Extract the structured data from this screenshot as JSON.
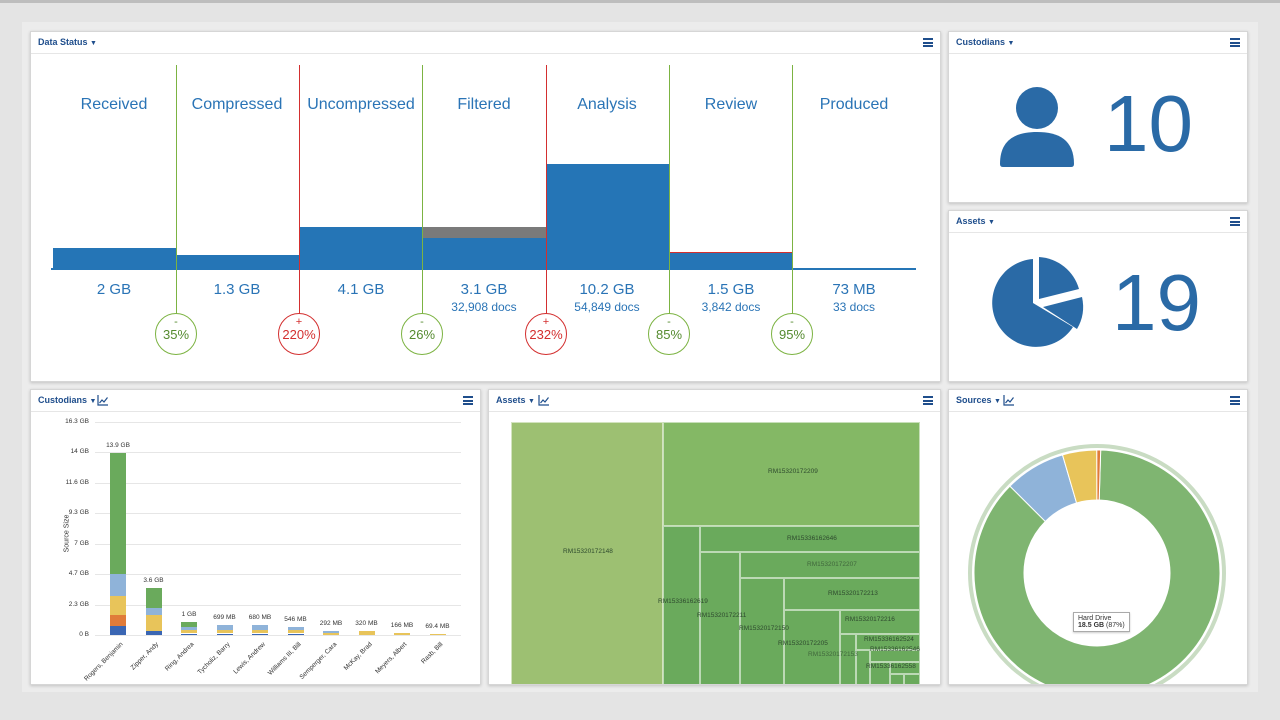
{
  "colors": {
    "accent": "#2575b6",
    "title": "#1f4e8c",
    "decrease": "#7cb342",
    "increase": "#d32f2f",
    "treemap_dark": "#6aaa5c",
    "treemap_light": "#9dc072"
  },
  "data_status": {
    "title": "Data Status",
    "stages": [
      {
        "name": "Received",
        "size": "2 GB",
        "docs": ""
      },
      {
        "name": "Compressed",
        "size": "1.3 GB",
        "docs": ""
      },
      {
        "name": "Uncompressed",
        "size": "4.1 GB",
        "docs": ""
      },
      {
        "name": "Filtered",
        "size": "3.1 GB",
        "docs": "32,908 docs"
      },
      {
        "name": "Analysis",
        "size": "10.2 GB",
        "docs": "54,849 docs"
      },
      {
        "name": "Review",
        "size": "1.5 GB",
        "docs": "3,842 docs"
      },
      {
        "name": "Produced",
        "size": "73 MB",
        "docs": "33 docs"
      }
    ],
    "changes": [
      {
        "sign": "-",
        "pct": "35%",
        "dir": "down"
      },
      {
        "sign": "+",
        "pct": "220%",
        "dir": "up"
      },
      {
        "sign": "-",
        "pct": "26%",
        "dir": "down"
      },
      {
        "sign": "+",
        "pct": "232%",
        "dir": "up"
      },
      {
        "sign": "-",
        "pct": "85%",
        "dir": "down"
      },
      {
        "sign": "-",
        "pct": "95%",
        "dir": "down"
      }
    ]
  },
  "custodians_count": {
    "title": "Custodians",
    "value": "10",
    "icon": "user-icon"
  },
  "assets_count": {
    "title": "Assets",
    "value": "19",
    "icon": "pie-chart-icon"
  },
  "custodians_chart": {
    "title": "Custodians",
    "chart_data": {
      "type": "bar",
      "ylabel": "Source Size",
      "yticks": [
        "16.3 GB",
        "14 GB",
        "11.6 GB",
        "9.3 GB",
        "7 GB",
        "4.7 GB",
        "2.3 GB",
        "0 B"
      ],
      "ylim": [
        0,
        16.3
      ],
      "categories": [
        "Rogers, Benjamin",
        "Zipper, Andy",
        "Ring, Andrea",
        "Tycholiz, Barry",
        "Lewis, Andrew",
        "Williams III, Bill",
        "Semperger, Cara",
        "McKay, Brad",
        "Meyers, Albert",
        "Rasb, Bill"
      ],
      "value_labels": [
        "13.9 GB",
        "3.6 GB",
        "1 GB",
        "699 MB",
        "680 MB",
        "546 MB",
        "292 MB",
        "320 MB",
        "166 MB",
        "69.4 MB"
      ],
      "values_gb": [
        13.9,
        3.6,
        1.0,
        0.699,
        0.68,
        0.546,
        0.292,
        0.32,
        0.166,
        0.0694
      ],
      "segment_colors": [
        "#3a66b3",
        "#e07b39",
        "#e8c45a",
        "#8fb3d9",
        "#6aaa5c"
      ],
      "segments_gb": [
        [
          0.7,
          0.8,
          1.5,
          1.7,
          9.2
        ],
        [
          0.3,
          0.0,
          1.2,
          0.6,
          1.5
        ],
        [
          0.1,
          0.0,
          0.3,
          0.2,
          0.4
        ],
        [
          0.05,
          0.0,
          0.3,
          0.349,
          0.0
        ],
        [
          0.05,
          0.0,
          0.3,
          0.33,
          0.0
        ],
        [
          0.05,
          0.0,
          0.25,
          0.246,
          0.0
        ],
        [
          0.0,
          0.0,
          0.15,
          0.142,
          0.0
        ],
        [
          0.0,
          0.0,
          0.32,
          0.0,
          0.0
        ],
        [
          0.0,
          0.0,
          0.166,
          0.0,
          0.0
        ],
        [
          0.0,
          0.0,
          0.0694,
          0.0,
          0.0
        ]
      ]
    }
  },
  "assets_treemap": {
    "title": "Assets",
    "labels": [
      "RM15320172148",
      "RM15320172209",
      "RM15336162646",
      "RM15320172207",
      "RM15320172213",
      "RM15336162619",
      "RM15320172211",
      "RM15320172216",
      "RM15320172150",
      "RM15336162524",
      "RM15320172205",
      "RM15336162546",
      "RM15320172153",
      "RM15336162558"
    ]
  },
  "sources_chart": {
    "title": "Sources",
    "tooltip": {
      "label": "Hard Drive",
      "value": "18.5 GB",
      "pct": "(87%)"
    },
    "chart_data": {
      "type": "pie",
      "slices": [
        {
          "name": "Hard Drive",
          "value": 87,
          "color": "#7fb571"
        },
        {
          "name": "",
          "value": 8,
          "color": "#8fb3d9"
        },
        {
          "name": "",
          "value": 4.5,
          "color": "#e8c45a"
        },
        {
          "name": "",
          "value": 0.5,
          "color": "#e07b39"
        }
      ]
    }
  }
}
